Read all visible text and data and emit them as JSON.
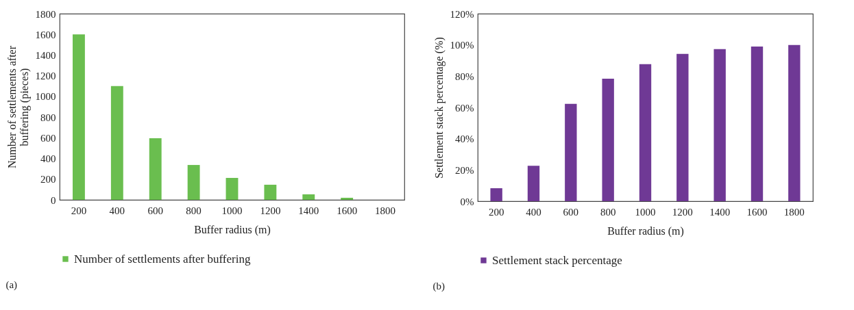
{
  "chart_data": [
    {
      "type": "bar",
      "categories": [
        "200",
        "400",
        "600",
        "800",
        "1000",
        "1200",
        "1400",
        "1600",
        "1800"
      ],
      "xlabel": "Buffer radius (m)",
      "ylabel": "Number of settlements after buffering (pieces)",
      "ylim": [
        0,
        1800
      ],
      "yticks": [
        0,
        200,
        400,
        600,
        800,
        1000,
        1200,
        1400,
        1600,
        1800
      ],
      "legend": "bottom",
      "annotations": [
        "(a)"
      ],
      "series": [
        {
          "name": "Number of settlements after buffering",
          "color": "#6abe4f",
          "values": [
            1600,
            1100,
            595,
            337,
            212,
            146,
            53,
            20,
            0
          ]
        }
      ]
    },
    {
      "type": "bar",
      "categories": [
        "200",
        "400",
        "600",
        "800",
        "1000",
        "1200",
        "1400",
        "1600",
        "1800"
      ],
      "xlabel": "Buffer radius (m)",
      "ylabel": "Settlement stack percentage (%)",
      "ylim": [
        0,
        120
      ],
      "yticks": [
        {
          "value": 0,
          "label": "0%"
        },
        {
          "value": 20,
          "label": "20%"
        },
        {
          "value": 40,
          "label": "40%"
        },
        {
          "value": 60,
          "label": "60%"
        },
        {
          "value": 80,
          "label": "80%"
        },
        {
          "value": 100,
          "label": "100%"
        },
        {
          "value": 120,
          "label": "120%"
        }
      ],
      "legend": "bottom",
      "annotations": [
        "(b)"
      ],
      "series": [
        {
          "name": "Settlement stack percentage",
          "color": "#6f3995",
          "values": [
            8.3,
            22.7,
            62.3,
            78.4,
            87.7,
            94.3,
            97.3,
            99,
            100
          ]
        }
      ]
    }
  ]
}
